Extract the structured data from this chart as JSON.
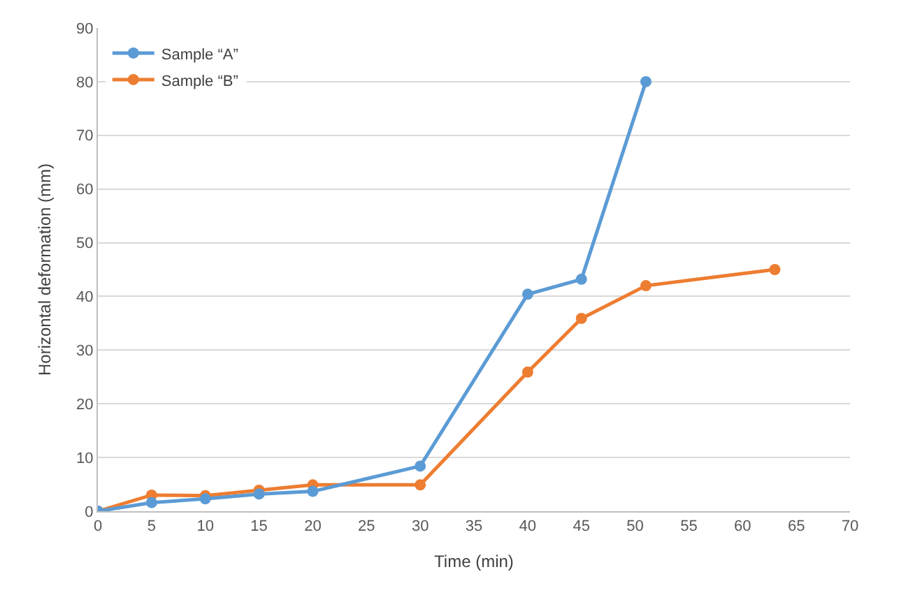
{
  "chart_data": {
    "type": "line",
    "xlabel": "Time (min)",
    "ylabel": "Horizontal deformation (mm)",
    "xlim": [
      0,
      70
    ],
    "xticks": [
      0,
      5,
      10,
      15,
      20,
      25,
      30,
      35,
      40,
      45,
      50,
      55,
      60,
      65,
      70
    ],
    "ylim": [
      0,
      90
    ],
    "yticks": [
      0,
      10,
      20,
      30,
      40,
      50,
      60,
      70,
      80,
      90
    ],
    "grid": "y",
    "legend": "top left",
    "marker": "circle",
    "line_style": "solid",
    "series": [
      {
        "name": "Sample “A”",
        "color": "#5b9bd5",
        "x": [
          0,
          5,
          10,
          15,
          20,
          30,
          40,
          45,
          51
        ],
        "values": [
          0,
          1.6,
          2.3,
          3.2,
          3.7,
          8.4,
          40.4,
          43.2,
          80
        ]
      },
      {
        "name": "Sample “B”",
        "color": "#ed7d31",
        "x": [
          0,
          5,
          10,
          15,
          20,
          30,
          40,
          45,
          51,
          63
        ],
        "values": [
          0,
          3,
          2.9,
          3.9,
          4.9,
          4.9,
          25.9,
          35.9,
          42,
          45
        ]
      }
    ]
  }
}
